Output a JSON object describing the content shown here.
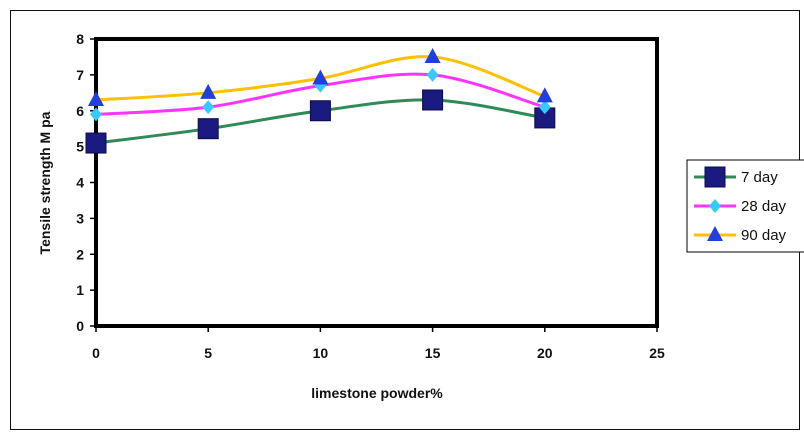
{
  "chart_data": {
    "type": "line",
    "title": "",
    "xlabel": "limestone powder%",
    "ylabel": "Tensile strength M pa",
    "x": [
      0,
      5,
      10,
      15,
      20
    ],
    "xlim": [
      0,
      25
    ],
    "xticks": [
      0,
      5,
      10,
      15,
      20,
      25
    ],
    "ylim": [
      0,
      8
    ],
    "yticks": [
      0,
      1,
      2,
      3,
      4,
      5,
      6,
      7,
      8
    ],
    "grid": false,
    "legend_position": "right",
    "series": [
      {
        "name": "7 day",
        "values": [
          5.1,
          5.5,
          6.0,
          6.3,
          5.8
        ],
        "color": "#2e8b57",
        "marker": "square",
        "marker_color": "#1a1a80"
      },
      {
        "name": "28 day",
        "values": [
          5.9,
          6.1,
          6.7,
          7.0,
          6.1
        ],
        "color": "#ff33ff",
        "marker": "diamond",
        "marker_color": "#33ccff"
      },
      {
        "name": "90 day",
        "values": [
          6.3,
          6.5,
          6.9,
          7.5,
          6.4
        ],
        "color": "#ffc000",
        "marker": "triangle",
        "marker_color": "#1f3fe0"
      }
    ]
  }
}
